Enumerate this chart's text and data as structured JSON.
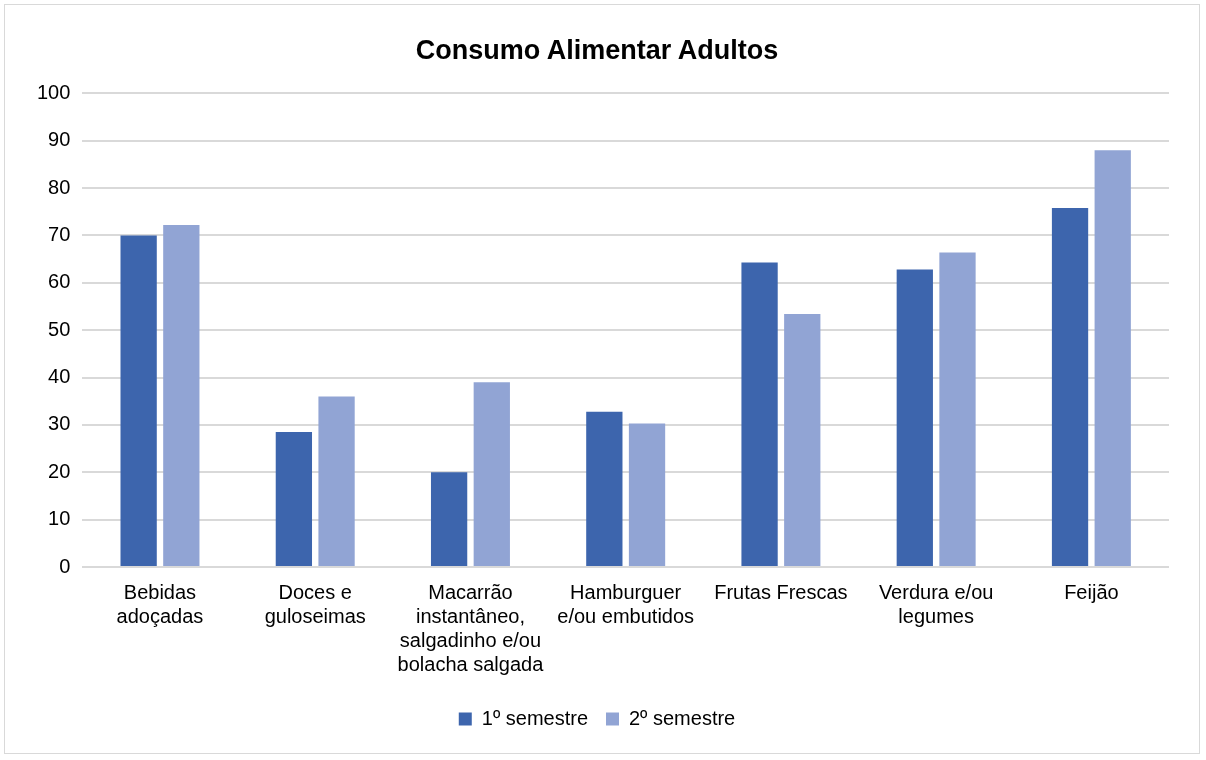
{
  "chart_data": {
    "type": "bar",
    "title": "Consumo Alimentar Adultos",
    "categories": [
      "Bebidas adoçadas",
      "Doces e guloseimas",
      "Macarrão instantâneo, salgadinho e/ou bolacha salgada",
      "Hamburguer e/ou embutidos",
      "Frutas Frescas",
      "Verdura e/ou legumes",
      "Feijão"
    ],
    "series": [
      {
        "name": "1º semestre",
        "color": "#3d65ad",
        "values": [
          70,
          28.5,
          20,
          32.8,
          64.3,
          62.8,
          75.8
        ]
      },
      {
        "name": "2º semestre",
        "color": "#91a4d4",
        "values": [
          72.2,
          36,
          39,
          30.3,
          53.4,
          66.4,
          88
        ]
      }
    ],
    "ylim": [
      0,
      100
    ],
    "yticks": [
      0,
      10,
      20,
      30,
      40,
      50,
      60,
      70,
      80,
      90,
      100
    ],
    "grid": "y",
    "legend": "bottom"
  }
}
